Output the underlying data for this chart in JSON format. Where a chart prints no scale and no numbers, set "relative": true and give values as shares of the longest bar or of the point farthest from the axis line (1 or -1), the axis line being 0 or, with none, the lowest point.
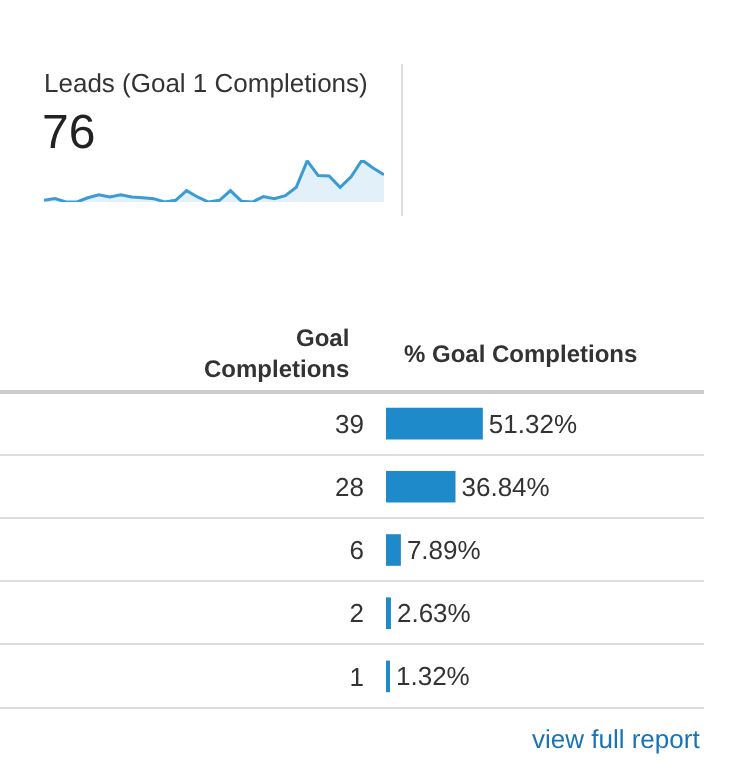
{
  "chart_data": [
    {
      "type": "area",
      "title": "Leads (Goal 1 Completions)",
      "annotations": [
        "76"
      ],
      "relative": true,
      "categories": [
        null,
        null,
        null,
        null,
        null,
        null,
        null,
        null,
        null,
        null,
        null,
        null,
        null,
        null,
        null,
        null,
        null,
        null,
        null,
        null,
        null,
        null,
        null,
        null,
        null,
        null,
        null,
        null,
        null,
        null,
        null,
        null
      ],
      "series": [
        {
          "color": "#3a9bd5",
          "values": [
            0.04,
            0.08,
            0,
            0,
            0.1,
            0.17,
            0.12,
            0.17,
            0.12,
            0.1,
            0.08,
            0,
            0.04,
            0.27,
            0.12,
            0,
            0.04,
            0.27,
            0.02,
            0,
            0.13,
            0.08,
            0.15,
            0.35,
            0.98,
            0.63,
            0.62,
            0.35,
            0.6,
            1,
            0.81,
            0.65
          ]
        }
      ]
    },
    {
      "type": "bar",
      "orientation": "horizontal",
      "title": "% Goal Completions",
      "ylabel": "Goal Completions",
      "categories": [
        "39",
        "28",
        "6",
        "2",
        "1"
      ],
      "series": [
        {
          "color": "#1f8ac9",
          "values": [
            51.32,
            36.84,
            7.89,
            2.63,
            1.32
          ],
          "value_labels": [
            "51.32%",
            "36.84%",
            "7.89%",
            "2.63%",
            "1.32%"
          ]
        }
      ],
      "annotations": [
        "view full report"
      ]
    }
  ]
}
